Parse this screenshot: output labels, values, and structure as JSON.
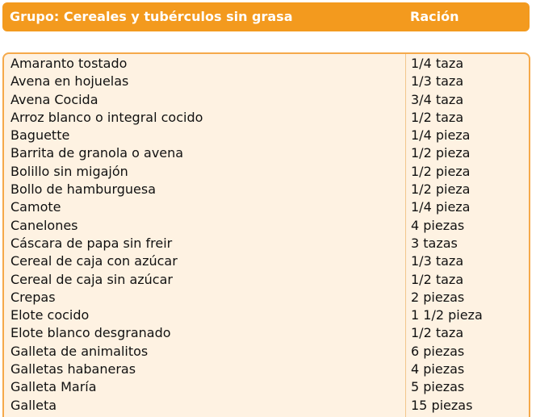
{
  "header": {
    "group_label": "Grupo: Cereales y tubérculos sin grasa",
    "ration_label": "Ración"
  },
  "rows": [
    {
      "food": "Amaranto tostado",
      "ration": "1/4 taza"
    },
    {
      "food": "Avena en hojuelas",
      "ration": "1/3 taza"
    },
    {
      "food": "Avena Cocida",
      "ration": "3/4 taza"
    },
    {
      "food": "Arroz blanco o integral cocido",
      "ration": "1/2 taza"
    },
    {
      "food": "Baguette",
      "ration": "1/4 pieza"
    },
    {
      "food": "Barrita de granola o avena",
      "ration": "1/2 pieza"
    },
    {
      "food": "Bolillo sin migajón",
      "ration": "1/2 pieza"
    },
    {
      "food": "Bollo de hamburguesa",
      "ration": "1/2 pieza"
    },
    {
      "food": "Camote",
      "ration": "1/4 pieza"
    },
    {
      "food": "Canelones",
      "ration": "4 piezas"
    },
    {
      "food": "Cáscara de papa sin freir",
      "ration": "3 tazas"
    },
    {
      "food": "Cereal de caja con azúcar",
      "ration": "1/3 taza"
    },
    {
      "food": "Cereal de caja sin azúcar",
      "ration": "1/2 taza"
    },
    {
      "food": "Crepas",
      "ration": "2 piezas"
    },
    {
      "food": "Elote cocido",
      "ration": "1 1/2 pieza"
    },
    {
      "food": "Elote blanco desgranado",
      "ration": "1/2 taza"
    },
    {
      "food": "Galleta de animalitos",
      "ration": "6 piezas"
    },
    {
      "food": "Galletas habaneras",
      "ration": "4 piezas"
    },
    {
      "food": "Galleta María",
      "ration": "5 piezas"
    },
    {
      "food": "Galleta",
      "ration": "15 piezas"
    }
  ],
  "colors": {
    "header_bg": "#f39a1e",
    "table_bg": "#fef2e2",
    "border": "#f5a94a"
  }
}
